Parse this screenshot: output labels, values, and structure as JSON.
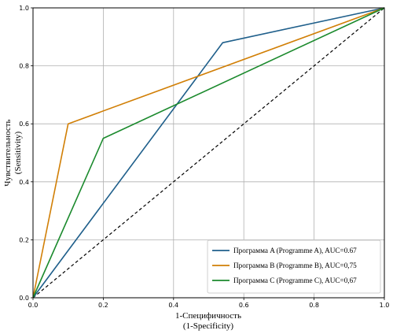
{
  "chart_data": {
    "type": "line",
    "title": "",
    "xlabel": [
      "1-Специфичность",
      "(1-Specificity)"
    ],
    "ylabel": [
      "Чувствительность",
      "(Sensitivity)"
    ],
    "xlim": [
      0,
      1
    ],
    "ylim": [
      0,
      1
    ],
    "xticks": [
      "0.0",
      "0.2",
      "0.4",
      "0.6",
      "0.8",
      "1.0"
    ],
    "yticks": [
      "0.0",
      "0.2",
      "0.4",
      "0.6",
      "0.8",
      "1.0"
    ],
    "grid": true,
    "legend_position": "bottom-right",
    "series": [
      {
        "name": "Программа A (Programme A), AUC=0.67",
        "color": "#1f5f8b",
        "x": [
          0,
          0.54,
          1
        ],
        "y": [
          0,
          0.88,
          1
        ]
      },
      {
        "name": "Программа B (Programme B), AUC=0,75",
        "color": "#d17f06",
        "x": [
          0,
          0.1,
          1
        ],
        "y": [
          0,
          0.6,
          1
        ]
      },
      {
        "name": "Программа C (Programme C), AUC=0,67",
        "color": "#1b8a2d",
        "x": [
          0,
          0.2,
          1
        ],
        "y": [
          0,
          0.55,
          1
        ]
      }
    ],
    "reference_line": {
      "style": "dashed",
      "color": "#000000",
      "x": [
        0,
        1
      ],
      "y": [
        0,
        1
      ]
    }
  }
}
